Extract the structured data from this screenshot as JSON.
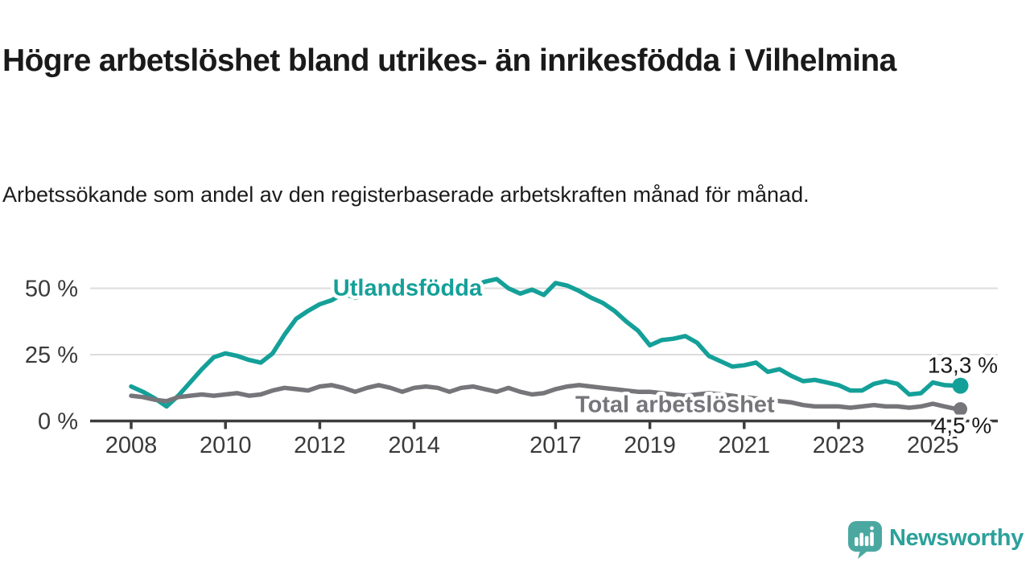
{
  "header": {
    "title": "Högre arbetslöshet bland utrikes- än inrikesfödda i Vilhelmina",
    "subtitle": "Arbetssökande som andel av den registerbaserade arbetskraften månad för månad."
  },
  "chart_data": {
    "type": "line",
    "title": "Högre arbetslöshet bland utrikes- än inrikesfödda i Vilhelmina",
    "subtitle": "Arbetssökande som andel av den registerbaserade arbetskraften månad för månad.",
    "unit": "%",
    "grid": "horizontal-only",
    "legend_position": "inline-labels-on-lines",
    "x_axis": {
      "ticks": [
        2008,
        2010,
        2012,
        2014,
        2017,
        2019,
        2021,
        2023,
        2025
      ],
      "tick_labels": [
        "2008",
        "2010",
        "2012",
        "2014",
        "2017",
        "2019",
        "2021",
        "2023",
        "2025"
      ],
      "range": [
        2007.1,
        2026.4
      ]
    },
    "y_axis": {
      "ticks": [
        0,
        25,
        50
      ],
      "tick_labels": [
        "0 %",
        "25 %",
        "50 %"
      ],
      "range": [
        0,
        57
      ]
    },
    "series": [
      {
        "name": "Utlandsfödda",
        "color": "#14a099",
        "x_start": 2008.0,
        "x_step": 0.25,
        "values": [
          13,
          11,
          8.5,
          5.5,
          9.5,
          14.5,
          19.5,
          24,
          25.5,
          24.5,
          23,
          22,
          25.5,
          32.5,
          38.5,
          41.5,
          44,
          45.5,
          48,
          46.5,
          47.5,
          47,
          48,
          48.5,
          49,
          48.5,
          49.5,
          50,
          50.5,
          50.5,
          52.5,
          53.5,
          50,
          48,
          49.5,
          47.5,
          52,
          51,
          49,
          46.5,
          44.5,
          41.5,
          37.5,
          34,
          28.5,
          30.5,
          31,
          32,
          29.5,
          24.5,
          22.5,
          20.5,
          21,
          22,
          18.5,
          19.5,
          17,
          15,
          15.5,
          14.5,
          13.5,
          11.5,
          11.5,
          14,
          15,
          14,
          10,
          10.5,
          14.5,
          13.5,
          13.3
        ],
        "end_value": 13.3,
        "end_label": "13,3 %",
        "end_label_position": "above",
        "inline_label": {
          "x": 2012.28,
          "y": 47.2
        }
      },
      {
        "name": "Total arbetslöshet",
        "color": "#75757a",
        "x_start": 2008.0,
        "x_step": 0.25,
        "values": [
          9.5,
          9,
          8,
          7.5,
          9,
          9.5,
          10,
          9.5,
          10,
          10.5,
          9.5,
          10,
          11.5,
          12.5,
          12,
          11.5,
          13,
          13.5,
          12.5,
          11,
          12.5,
          13.5,
          12.5,
          11,
          12.5,
          13,
          12.5,
          11,
          12.5,
          13,
          12,
          11,
          12.5,
          11,
          10,
          10.5,
          12,
          13,
          13.5,
          13,
          12.5,
          12,
          11.5,
          11,
          11,
          10.5,
          10,
          9.5,
          10,
          10.5,
          10,
          9.5,
          9,
          8.5,
          8,
          7.5,
          7,
          6,
          5.5,
          5.5,
          5.5,
          5,
          5.5,
          6,
          5.5,
          5.5,
          5,
          5.5,
          6.5,
          5.5,
          4.5
        ],
        "end_value": 4.5,
        "end_label": "4,5 %",
        "end_label_position": "below",
        "inline_label": {
          "x": 2017.42,
          "y": 3.3
        }
      }
    ],
    "colors": {
      "axis": "#3d3d3d",
      "gridline": "#dcdcdc",
      "tick_text": "#3a3a3a",
      "end_label_text": "#1a1a1a"
    }
  },
  "branding": {
    "name": "Newsworthy",
    "color": "#2ba19a",
    "icon": "speech-bubble-bar-chart-exclamation"
  }
}
